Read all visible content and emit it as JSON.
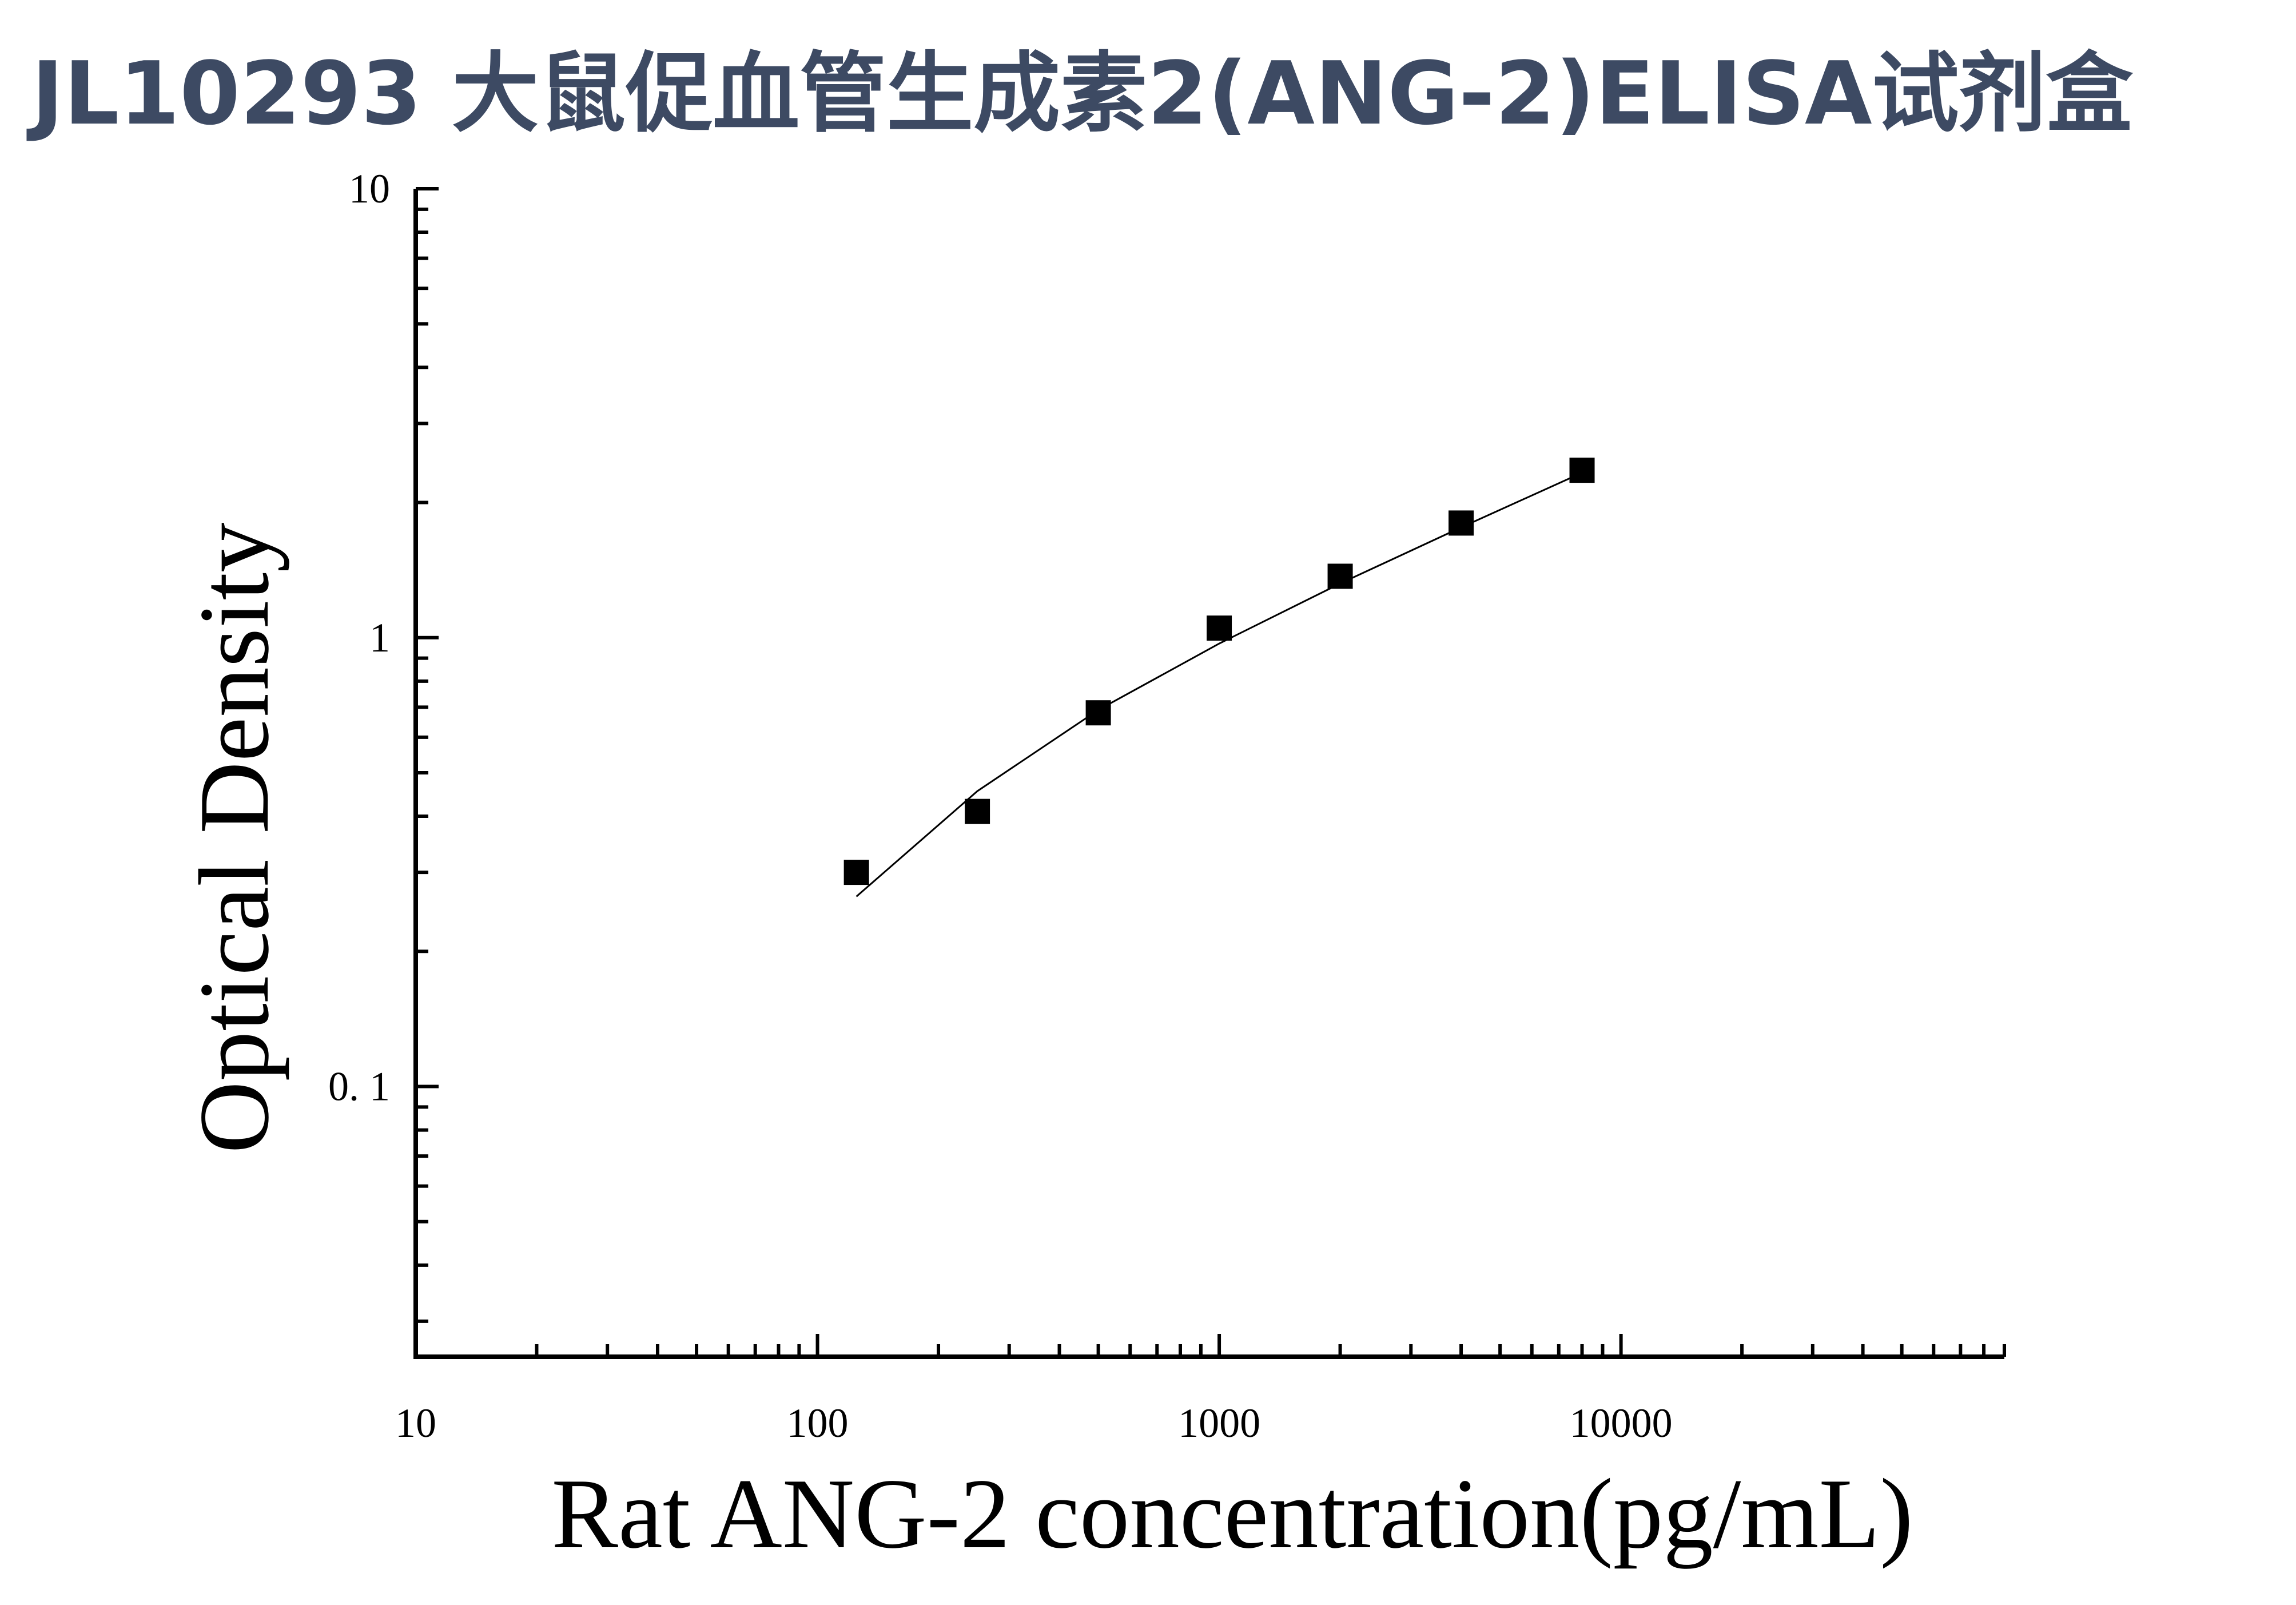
{
  "title": "JL10293 大鼠促血管生成素2(ANG-2)ELISA试剂盒",
  "chart_data": {
    "type": "scatter",
    "title": "JL10293 大鼠促血管生成素2(ANG-2)ELISA试剂盒",
    "xlabel": "Rat ANG-2 concentration(pg/mL)",
    "ylabel": "Optical Density",
    "xscale": "log",
    "yscale": "log",
    "xlim": [
      10,
      90000
    ],
    "ylim": [
      0.025,
      10
    ],
    "xticks": [
      10,
      100,
      1000,
      10000
    ],
    "xtick_labels": [
      "10",
      "100",
      "1000",
      "10000"
    ],
    "yticks": [
      0.1,
      1,
      10
    ],
    "ytick_labels": [
      "0. 1",
      "1",
      "10"
    ],
    "grid": false,
    "series": [
      {
        "marker": "square",
        "color": "#000000",
        "x": [
          125,
          250,
          500,
          1000,
          2000,
          4000,
          8000
        ],
        "y": [
          0.3,
          0.41,
          0.68,
          1.05,
          1.37,
          1.8,
          2.36
        ]
      }
    ],
    "fit_curve": {
      "color": "#000000",
      "x": [
        125,
        250,
        500,
        1000,
        2000,
        4000,
        8000
      ],
      "y": [
        0.265,
        0.455,
        0.69,
        0.97,
        1.32,
        1.76,
        2.33
      ]
    }
  }
}
